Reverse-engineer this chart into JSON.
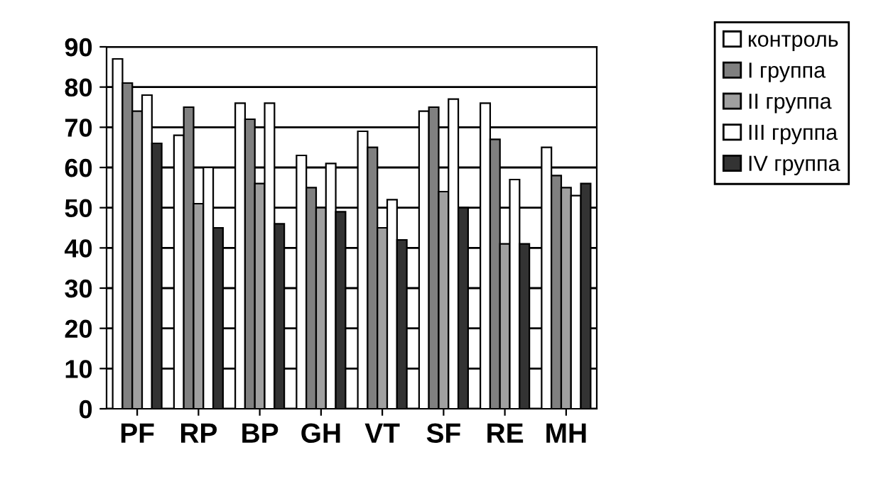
{
  "chart_data": {
    "type": "bar",
    "categories": [
      "PF",
      "RP",
      "BP",
      "GH",
      "VT",
      "SF",
      "RE",
      "MH"
    ],
    "series": [
      {
        "name": "контроль",
        "color": "#ffffff",
        "values": [
          87,
          68,
          76,
          63,
          69,
          74,
          76,
          65
        ]
      },
      {
        "name": "I группа",
        "color": "#808080",
        "values": [
          81,
          75,
          72,
          55,
          65,
          75,
          67,
          58
        ]
      },
      {
        "name": "II группа",
        "color": "#a0a0a0",
        "values": [
          74,
          51,
          56,
          50,
          45,
          54,
          41,
          55
        ]
      },
      {
        "name": "III группа",
        "color": "#ffffff",
        "values": [
          78,
          60,
          76,
          61,
          52,
          77,
          57,
          53
        ]
      },
      {
        "name": "IV группа",
        "color": "#333333",
        "values": [
          66,
          45,
          46,
          49,
          42,
          50,
          41,
          56
        ]
      }
    ],
    "ylim": [
      0,
      90
    ],
    "yticks": [
      0,
      10,
      20,
      30,
      40,
      50,
      60,
      70,
      80,
      90
    ],
    "grid": "y",
    "legend": "top right"
  }
}
